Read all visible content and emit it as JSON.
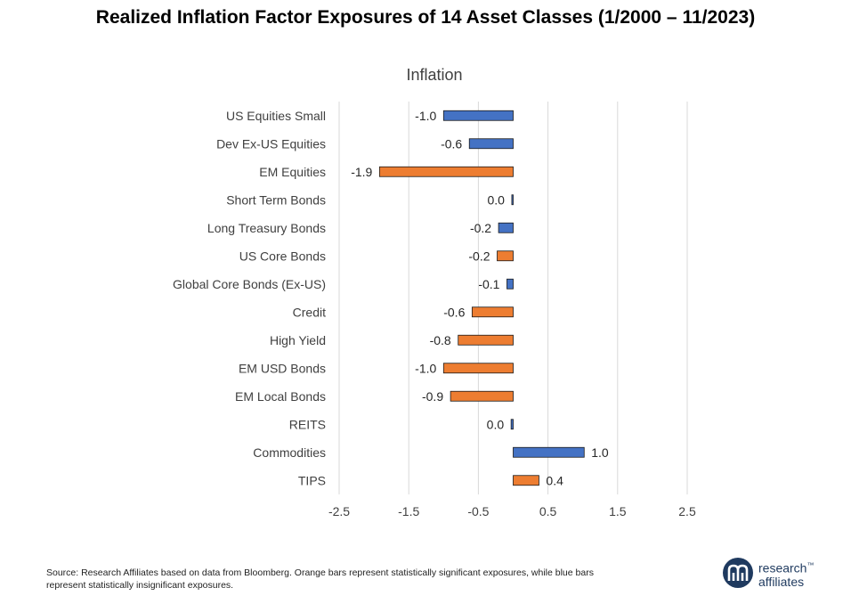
{
  "title": "Realized Inflation Factor Exposures of 14 Asset Classes (1/2000 – 11/2023)",
  "source": "Source: Research Affiliates based on data from Bloomberg. Orange bars represent statistically significant exposures, while blue bars represent statistically insignificant exposures.",
  "logo": {
    "line1": "research",
    "line2": "affiliates",
    "tm": "™"
  },
  "colors": {
    "significant": "#ed7d31",
    "insignificant": "#4472c4",
    "grid": "#d9d9d9",
    "text": "#404040"
  },
  "chart_data": {
    "type": "bar",
    "orientation": "horizontal",
    "title": "Inflation",
    "categories": [
      "US Equities Small",
      "Dev Ex-US Equities",
      "EM Equities",
      "Short Term Bonds",
      "Long Treasury Bonds",
      "US Core Bonds",
      "Global Core Bonds (Ex-US)",
      "Credit",
      "High Yield",
      "EM USD Bonds",
      "EM Local Bonds",
      "REITS",
      "Commodities",
      "TIPS"
    ],
    "values": [
      -1.0,
      -0.63,
      -1.92,
      -0.02,
      -0.21,
      -0.23,
      -0.09,
      -0.59,
      -0.79,
      -1.0,
      -0.9,
      -0.03,
      1.02,
      0.37
    ],
    "labels": [
      "-1.0",
      "-0.6",
      "-1.9",
      "0.0",
      "-0.2",
      "-0.2",
      "-0.1",
      "-0.6",
      "-0.8",
      "-1.0",
      "-0.9",
      "0.0",
      "1.0",
      "0.4"
    ],
    "significant": [
      false,
      false,
      true,
      false,
      false,
      true,
      false,
      true,
      true,
      true,
      true,
      false,
      false,
      true
    ],
    "xlim": [
      -2.5,
      2.5
    ],
    "xticks": [
      -2.5,
      -1.5,
      -0.5,
      0.5,
      1.5,
      2.5
    ],
    "xtick_labels": [
      "-2.5",
      "-1.5",
      "-0.5",
      "0.5",
      "1.5",
      "2.5"
    ],
    "grid": true,
    "legend": "none"
  }
}
